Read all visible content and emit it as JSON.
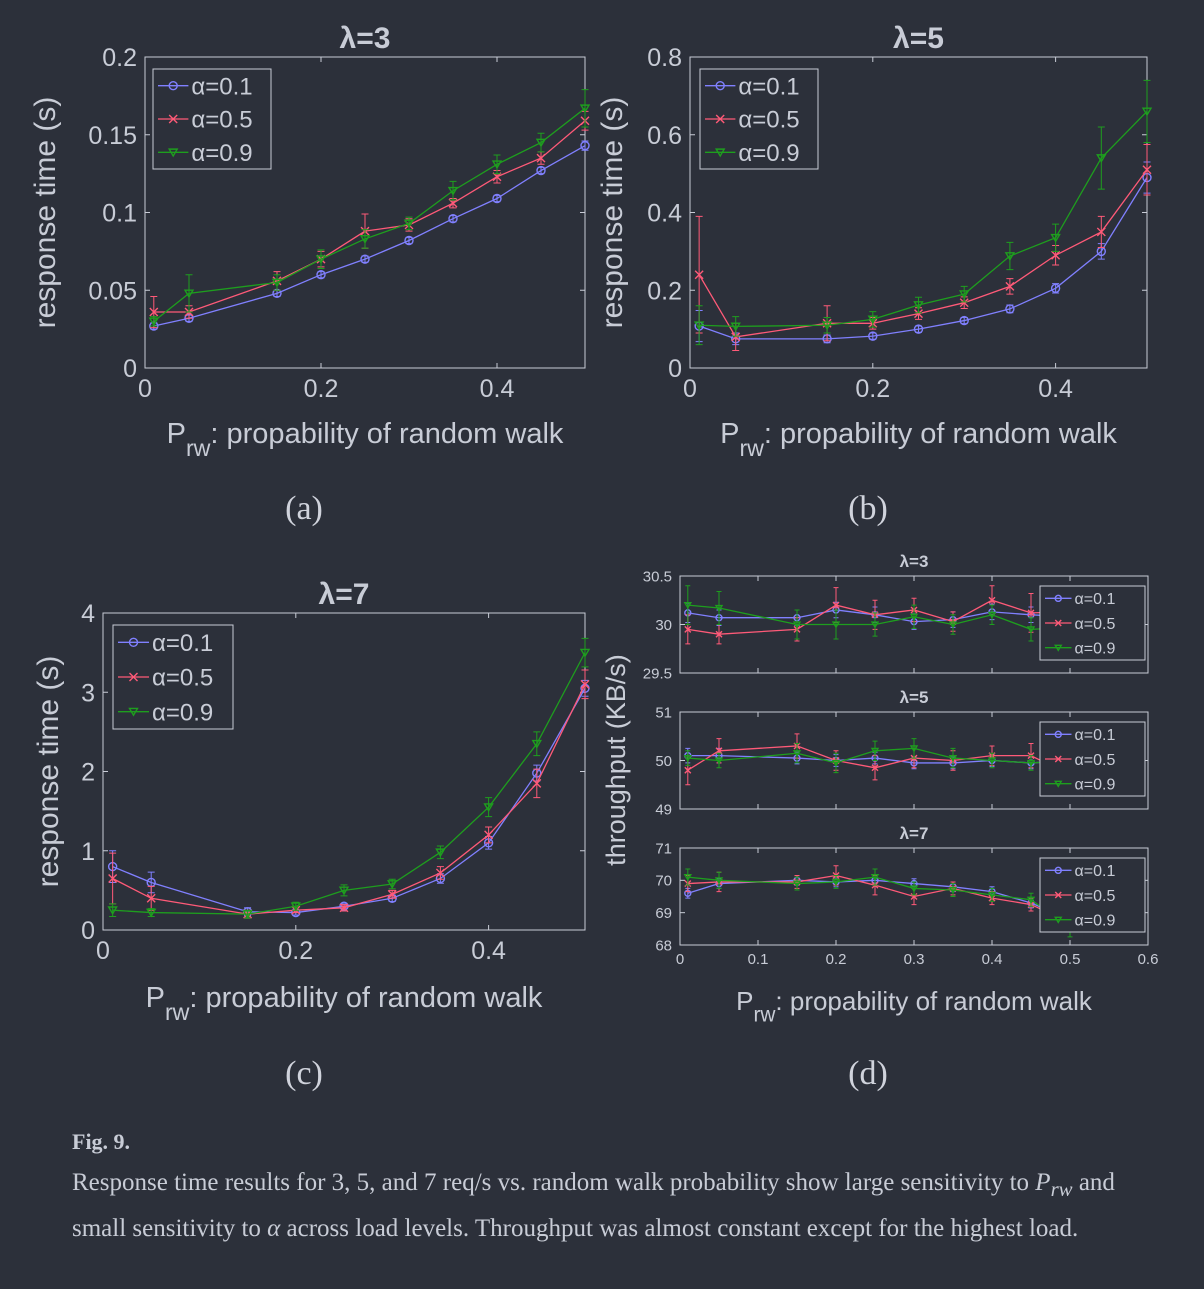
{
  "panels": [
    {
      "id": "a",
      "sublabel": "(a)"
    },
    {
      "id": "b",
      "sublabel": "(b)"
    },
    {
      "id": "c",
      "sublabel": "(c)"
    },
    {
      "id": "d",
      "sublabel": "(d)"
    }
  ],
  "caption": {
    "fig_label": "Fig. 9.",
    "text_1": "Response time results for 3, 5, and 7 req/s vs. random walk probability show large sensitivity to ",
    "symbol_p": "P",
    "symbol_p_sub": "rw",
    "text_2": " and small sensitivity to ",
    "symbol_alpha": "α",
    "text_3": " across load levels. Throughput was almost constant except for the highest load."
  },
  "colors": {
    "alpha_0_1": "#8080ff",
    "alpha_0_5": "#ff5a78",
    "alpha_0_9": "#1e9e1e",
    "background": "#2c303a",
    "axes": "#c8ccd6",
    "grid": "#3a3e4a"
  },
  "chart_data": [
    {
      "id": "a",
      "type": "line",
      "title": "λ=3",
      "xlabel": "P",
      "xlabel_sub": "rw",
      "xlabel_rest": ": propability of random walk",
      "ylabel": "response time (s)",
      "xlim": [
        0,
        0.5
      ],
      "ylim": [
        0,
        0.2
      ],
      "xticks": [
        0,
        0.2,
        0.4
      ],
      "xtick_labels": [
        "0",
        "0.2",
        "0.4"
      ],
      "yticks": [
        0,
        0.05,
        0.1,
        0.15,
        0.2
      ],
      "ytick_labels": [
        "0",
        "0.05",
        "0.1",
        "0.15",
        "0.2"
      ],
      "legend": "top-left",
      "x": [
        0.01,
        0.05,
        0.15,
        0.2,
        0.25,
        0.3,
        0.35,
        0.4,
        0.45,
        0.5
      ],
      "series": [
        {
          "name": "α=0.1",
          "values": [
            0.027,
            0.032,
            0.048,
            0.06,
            0.07,
            0.082,
            0.096,
            0.109,
            0.127,
            0.143
          ],
          "err": [
            0.002,
            0.002,
            0.002,
            0.002,
            0.002,
            0.002,
            0.002,
            0.002,
            0.002,
            0.003
          ]
        },
        {
          "name": "α=0.5",
          "values": [
            0.036,
            0.036,
            0.056,
            0.07,
            0.088,
            0.092,
            0.106,
            0.123,
            0.135,
            0.159
          ],
          "err": [
            0.01,
            0.004,
            0.006,
            0.005,
            0.011,
            0.004,
            0.003,
            0.004,
            0.004,
            0.006
          ]
        },
        {
          "name": "α=0.9",
          "values": [
            0.03,
            0.048,
            0.055,
            0.07,
            0.083,
            0.093,
            0.114,
            0.131,
            0.145,
            0.167
          ],
          "err": [
            0.003,
            0.012,
            0.005,
            0.006,
            0.006,
            0.004,
            0.006,
            0.006,
            0.006,
            0.012
          ]
        }
      ]
    },
    {
      "id": "b",
      "type": "line",
      "title": "λ=5",
      "xlabel": "P",
      "xlabel_sub": "rw",
      "xlabel_rest": ": propability of random walk",
      "ylabel": "response time (s)",
      "xlim": [
        0,
        0.5
      ],
      "ylim": [
        0,
        0.8
      ],
      "xticks": [
        0,
        0.2,
        0.4
      ],
      "xtick_labels": [
        "0",
        "0.2",
        "0.4"
      ],
      "yticks": [
        0,
        0.2,
        0.4,
        0.6,
        0.8
      ],
      "ytick_labels": [
        "0",
        "0.2",
        "0.4",
        "0.6",
        "0.8"
      ],
      "legend": "top-left",
      "x": [
        0.01,
        0.05,
        0.15,
        0.2,
        0.25,
        0.3,
        0.35,
        0.4,
        0.45,
        0.5
      ],
      "series": [
        {
          "name": "α=0.1",
          "values": [
            0.108,
            0.075,
            0.075,
            0.082,
            0.1,
            0.122,
            0.152,
            0.205,
            0.3,
            0.49
          ],
          "err": [
            0.04,
            0.015,
            0.01,
            0.008,
            0.008,
            0.008,
            0.01,
            0.012,
            0.02,
            0.04
          ]
        },
        {
          "name": "α=0.5",
          "values": [
            0.24,
            0.08,
            0.115,
            0.115,
            0.14,
            0.168,
            0.21,
            0.29,
            0.35,
            0.51
          ],
          "err": [
            0.15,
            0.035,
            0.045,
            0.015,
            0.015,
            0.015,
            0.02,
            0.025,
            0.04,
            0.065
          ]
        },
        {
          "name": "α=0.9",
          "values": [
            0.11,
            0.107,
            0.11,
            0.125,
            0.162,
            0.19,
            0.288,
            0.335,
            0.54,
            0.66
          ],
          "err": [
            0.05,
            0.025,
            0.02,
            0.02,
            0.02,
            0.02,
            0.035,
            0.035,
            0.08,
            0.08
          ]
        }
      ]
    },
    {
      "id": "c",
      "type": "line",
      "title": "λ=7",
      "xlabel": "P",
      "xlabel_sub": "rw",
      "xlabel_rest": ": propability of random walk",
      "ylabel": "response time (s)",
      "xlim": [
        0,
        0.5
      ],
      "ylim": [
        0,
        4
      ],
      "xticks": [
        0,
        0.2,
        0.4
      ],
      "xtick_labels": [
        "0",
        "0.2",
        "0.4"
      ],
      "yticks": [
        0,
        1,
        2,
        3,
        4
      ],
      "ytick_labels": [
        "0",
        "1",
        "2",
        "3",
        "4"
      ],
      "legend": "top-left",
      "x": [
        0.01,
        0.05,
        0.15,
        0.2,
        0.25,
        0.3,
        0.35,
        0.4,
        0.45,
        0.5
      ],
      "series": [
        {
          "name": "α=0.1",
          "values": [
            0.8,
            0.6,
            0.23,
            0.22,
            0.3,
            0.4,
            0.65,
            1.1,
            1.98,
            3.05
          ],
          "err": [
            0.2,
            0.13,
            0.05,
            0.03,
            0.03,
            0.04,
            0.06,
            0.08,
            0.1,
            0.1
          ]
        },
        {
          "name": "α=0.5",
          "values": [
            0.65,
            0.4,
            0.2,
            0.25,
            0.28,
            0.45,
            0.72,
            1.2,
            1.85,
            3.1
          ],
          "err": [
            0.32,
            0.15,
            0.05,
            0.03,
            0.04,
            0.05,
            0.08,
            0.1,
            0.18,
            0.18
          ]
        },
        {
          "name": "α=0.9",
          "values": [
            0.25,
            0.22,
            0.2,
            0.3,
            0.5,
            0.58,
            0.98,
            1.55,
            2.35,
            3.5
          ],
          "err": [
            0.08,
            0.05,
            0.05,
            0.05,
            0.07,
            0.06,
            0.08,
            0.12,
            0.15,
            0.18
          ]
        }
      ]
    },
    {
      "id": "d1",
      "type": "line",
      "title": "λ=3",
      "xlim": [
        0,
        0.6
      ],
      "ylim": [
        29.5,
        30.5
      ],
      "yticks": [
        29.5,
        30,
        30.5
      ],
      "ytick_labels": [
        "29.5",
        "30",
        "30.5"
      ],
      "legend": "right",
      "x": [
        0.01,
        0.05,
        0.15,
        0.2,
        0.25,
        0.3,
        0.35,
        0.4,
        0.45,
        0.5
      ],
      "series": [
        {
          "name": "α=0.1",
          "values": [
            30.12,
            30.07,
            30.07,
            30.15,
            30.1,
            30.03,
            30.05,
            30.13,
            30.1,
            30.08
          ],
          "err": [
            0.1,
            0.08,
            0.08,
            0.08,
            0.08,
            0.08,
            0.08,
            0.08,
            0.08,
            0.08
          ]
        },
        {
          "name": "α=0.5",
          "values": [
            29.95,
            29.9,
            29.95,
            30.2,
            30.1,
            30.15,
            30.03,
            30.25,
            30.12,
            30.13
          ],
          "err": [
            0.15,
            0.1,
            0.12,
            0.18,
            0.15,
            0.12,
            0.1,
            0.15,
            0.2,
            0.2
          ]
        },
        {
          "name": "α=0.9",
          "values": [
            30.2,
            30.17,
            30.0,
            30.0,
            30.0,
            30.08,
            30.0,
            30.1,
            29.95,
            29.97
          ],
          "err": [
            0.2,
            0.17,
            0.15,
            0.15,
            0.12,
            0.12,
            0.1,
            0.1,
            0.12,
            0.12
          ]
        }
      ]
    },
    {
      "id": "d2",
      "type": "line",
      "title": "λ=5",
      "xlim": [
        0,
        0.6
      ],
      "ylim": [
        49,
        51
      ],
      "yticks": [
        49,
        50,
        51
      ],
      "ytick_labels": [
        "49",
        "50",
        "51"
      ],
      "legend": "right",
      "x": [
        0.01,
        0.05,
        0.15,
        0.2,
        0.25,
        0.3,
        0.35,
        0.4,
        0.45,
        0.5
      ],
      "series": [
        {
          "name": "α=0.1",
          "values": [
            50.1,
            50.1,
            50.05,
            50.0,
            50.05,
            49.95,
            49.95,
            50.0,
            49.95,
            50.0
          ],
          "err": [
            0.15,
            0.15,
            0.12,
            0.12,
            0.12,
            0.12,
            0.12,
            0.12,
            0.12,
            0.12
          ]
        },
        {
          "name": "α=0.5",
          "values": [
            49.8,
            50.2,
            50.3,
            50.0,
            49.85,
            50.05,
            50.0,
            50.1,
            50.1,
            49.7
          ],
          "err": [
            0.3,
            0.25,
            0.25,
            0.2,
            0.25,
            0.2,
            0.2,
            0.2,
            0.25,
            0.3
          ]
        },
        {
          "name": "α=0.9",
          "values": [
            50.05,
            50.0,
            50.15,
            49.95,
            50.2,
            50.25,
            50.05,
            50.0,
            49.95,
            50.0
          ],
          "err": [
            0.15,
            0.15,
            0.2,
            0.2,
            0.2,
            0.2,
            0.2,
            0.15,
            0.15,
            0.15
          ]
        }
      ]
    },
    {
      "id": "d3",
      "type": "line",
      "title": "λ=7",
      "xlabel": "P",
      "xlabel_sub": "rw",
      "xlabel_rest": ": propability of random walk",
      "xlim": [
        0,
        0.6
      ],
      "ylim": [
        68,
        71
      ],
      "xticks": [
        0,
        0.1,
        0.2,
        0.3,
        0.4,
        0.5,
        0.6
      ],
      "xtick_labels": [
        "0",
        "0.1",
        "0.2",
        "0.3",
        "0.4",
        "0.5",
        "0.6"
      ],
      "yticks": [
        68,
        69,
        70,
        71
      ],
      "ytick_labels": [
        "68",
        "69",
        "70",
        "71"
      ],
      "legend": "right",
      "x": [
        0.01,
        0.05,
        0.15,
        0.2,
        0.25,
        0.3,
        0.35,
        0.4,
        0.45,
        0.5
      ],
      "series": [
        {
          "name": "α=0.1",
          "values": [
            69.6,
            69.9,
            70.0,
            69.95,
            70.0,
            69.9,
            69.8,
            69.65,
            69.3,
            68.8
          ],
          "err": [
            0.15,
            0.15,
            0.15,
            0.15,
            0.15,
            0.15,
            0.15,
            0.15,
            0.15,
            0.15
          ]
        },
        {
          "name": "α=0.5",
          "values": [
            69.9,
            69.95,
            69.95,
            70.15,
            69.85,
            69.5,
            69.75,
            69.45,
            69.25,
            68.7
          ],
          "err": [
            0.25,
            0.3,
            0.2,
            0.3,
            0.3,
            0.25,
            0.2,
            0.2,
            0.2,
            0.25
          ]
        },
        {
          "name": "α=0.9",
          "values": [
            70.1,
            70.0,
            69.9,
            69.95,
            70.1,
            69.75,
            69.7,
            69.55,
            69.4,
            68.55
          ],
          "err": [
            0.25,
            0.25,
            0.2,
            0.2,
            0.25,
            0.2,
            0.2,
            0.2,
            0.2,
            0.3
          ]
        }
      ],
      "shared_ylabel": "throughput (KB/s)"
    }
  ]
}
